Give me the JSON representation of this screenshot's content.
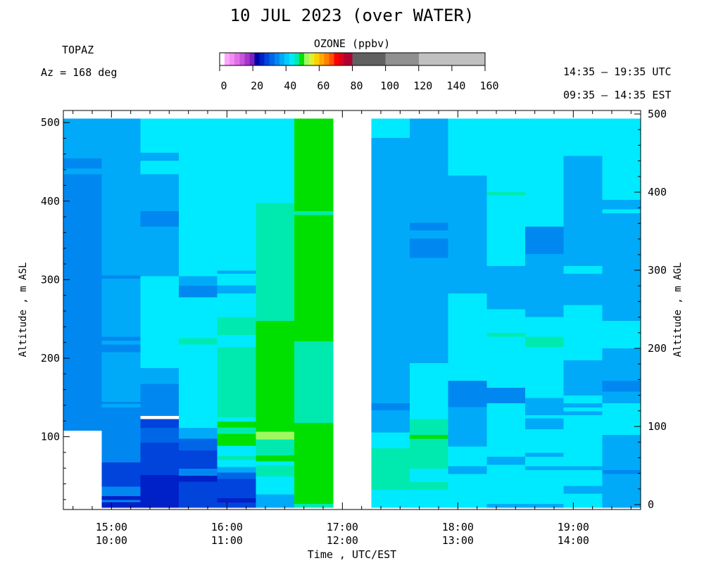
{
  "header": {
    "title": "10 JUL 2023 (over WATER)",
    "site": "TOPAZ",
    "azimuth": "Az = 168 deg",
    "time_utc": "14:35 – 19:35 UTC",
    "time_est": "09:35 – 14:35 EST"
  },
  "colorbar": {
    "title": "OZONE (ppbv)",
    "ticks": [
      "0",
      "20",
      "40",
      "60",
      "80",
      "100",
      "120",
      "140",
      "160"
    ],
    "colors": [
      "#ffffff",
      "#ffa6ff",
      "#f48cf4",
      "#e070e8",
      "#c854dc",
      "#a636cc",
      "#7a20bc",
      "#0000a8",
      "#0020c8",
      "#0044dc",
      "#0066e8",
      "#0088f0",
      "#00aaf8",
      "#00ccfc",
      "#00eaff",
      "#00eab0",
      "#00e000",
      "#a0f860",
      "#e0f030",
      "#ffd000",
      "#ffa800",
      "#ff8000",
      "#ff5000",
      "#ff0000",
      "#d80020",
      "#b00030",
      "#606060",
      "#909090",
      "#c0c0c0"
    ],
    "ranges": [
      [
        0,
        3
      ],
      [
        3,
        6
      ],
      [
        6,
        9
      ],
      [
        9,
        12
      ],
      [
        12,
        15
      ],
      [
        15,
        18
      ],
      [
        18,
        21
      ],
      [
        21,
        24
      ],
      [
        24,
        27
      ],
      [
        27,
        30
      ],
      [
        30,
        33
      ],
      [
        33,
        36
      ],
      [
        36,
        39
      ],
      [
        39,
        42
      ],
      [
        42,
        45
      ],
      [
        45,
        48
      ],
      [
        48,
        51
      ],
      [
        51,
        54
      ],
      [
        54,
        57
      ],
      [
        57,
        60
      ],
      [
        60,
        63
      ],
      [
        63,
        66
      ],
      [
        66,
        69
      ],
      [
        69,
        72
      ],
      [
        72,
        75
      ],
      [
        75,
        80
      ],
      [
        80,
        100
      ],
      [
        100,
        120
      ],
      [
        120,
        160
      ]
    ]
  },
  "chart_data": {
    "type": "heatmap",
    "variable": "Ozone (ppbv)",
    "xlabel": "Time , UTC/EST",
    "ylabel_left": "Altitude , m ASL",
    "ylabel_right": "Altitude , m AGL",
    "x_ticks_utc": [
      "15:00",
      "16:00",
      "17:00",
      "18:00",
      "19:00"
    ],
    "x_ticks_est": [
      "10:00",
      "11:00",
      "12:00",
      "13:00",
      "14:00"
    ],
    "y_ticks_left": [
      100,
      200,
      300,
      400,
      500
    ],
    "y_ticks_right": [
      0,
      100,
      200,
      300,
      400,
      500
    ],
    "color_legend": {
      "light-blue": "#00aaf8",
      "mid-blue": "#0088f0",
      "blue": "#0066e8",
      "dark-blue": "#0044dc",
      "navy": "#0020c8",
      "deep-navy": "#0000a8",
      "cyan": "#00eaff",
      "turquoise": "#00eab0",
      "green": "#00e000",
      "lime": "#a0f860"
    },
    "profiles": [
      {
        "start": "14:35",
        "end": "14:55",
        "layers": [
          [
            108,
            435,
            "mid-blue"
          ],
          [
            435,
            442,
            "light-blue"
          ],
          [
            442,
            455,
            "mid-blue"
          ],
          [
            455,
            505,
            "light-blue"
          ]
        ]
      },
      {
        "start": "14:55",
        "end": "15:15",
        "layers": [
          [
            10,
            17,
            "navy"
          ],
          [
            17,
            20,
            "mid-blue"
          ],
          [
            20,
            25,
            "navy"
          ],
          [
            25,
            37,
            "mid-blue"
          ],
          [
            37,
            68,
            "dark-blue"
          ],
          [
            68,
            138,
            "mid-blue"
          ],
          [
            138,
            142,
            "light-blue"
          ],
          [
            142,
            145,
            "mid-blue"
          ],
          [
            145,
            150,
            "light-blue"
          ],
          [
            150,
            208,
            "light-blue"
          ],
          [
            208,
            218,
            "mid-blue"
          ],
          [
            218,
            223,
            "light-blue"
          ],
          [
            223,
            228,
            "mid-blue"
          ],
          [
            228,
            302,
            "light-blue"
          ],
          [
            302,
            306,
            "mid-blue"
          ],
          [
            306,
            505,
            "light-blue"
          ]
        ]
      },
      {
        "start": "15:15",
        "end": "15:35",
        "layers": [
          [
            10,
            52,
            "navy"
          ],
          [
            52,
            93,
            "dark-blue"
          ],
          [
            93,
            112,
            "blue"
          ],
          [
            112,
            123,
            "dark-blue"
          ],
          [
            123,
            127,
            "white"
          ],
          [
            127,
            168,
            "mid-blue"
          ],
          [
            168,
            188,
            "light-blue"
          ],
          [
            188,
            305,
            "cyan"
          ],
          [
            305,
            368,
            "light-blue"
          ],
          [
            368,
            388,
            "mid-blue"
          ],
          [
            388,
            435,
            "light-blue"
          ],
          [
            435,
            452,
            "cyan"
          ],
          [
            452,
            462,
            "light-blue"
          ],
          [
            462,
            505,
            "cyan"
          ]
        ]
      },
      {
        "start": "15:35",
        "end": "15:55",
        "layers": [
          [
            10,
            43,
            "dark-blue"
          ],
          [
            43,
            51,
            "navy"
          ],
          [
            51,
            60,
            "mid-blue"
          ],
          [
            60,
            83,
            "dark-blue"
          ],
          [
            83,
            98,
            "blue"
          ],
          [
            98,
            112,
            "light-blue"
          ],
          [
            112,
            218,
            "cyan"
          ],
          [
            218,
            226,
            "turquoise"
          ],
          [
            226,
            278,
            "cyan"
          ],
          [
            278,
            293,
            "mid-blue"
          ],
          [
            293,
            305,
            "light-blue"
          ],
          [
            305,
            418,
            "cyan"
          ],
          [
            418,
            505,
            "cyan"
          ]
        ]
      },
      {
        "start": "15:55",
        "end": "16:15",
        "layers": [
          [
            10,
            17,
            "dark-blue"
          ],
          [
            17,
            22,
            "navy"
          ],
          [
            22,
            47,
            "dark-blue"
          ],
          [
            47,
            55,
            "blue"
          ],
          [
            55,
            62,
            "light-blue"
          ],
          [
            62,
            71,
            "cyan"
          ],
          [
            71,
            76,
            "turquoise"
          ],
          [
            76,
            89,
            "cyan"
          ],
          [
            89,
            104,
            "green"
          ],
          [
            104,
            112,
            "turquoise"
          ],
          [
            112,
            120,
            "green"
          ],
          [
            120,
            125,
            "cyan"
          ],
          [
            125,
            215,
            "turquoise"
          ],
          [
            215,
            230,
            "cyan"
          ],
          [
            230,
            253,
            "turquoise"
          ],
          [
            253,
            283,
            "cyan"
          ],
          [
            283,
            293,
            "light-blue"
          ],
          [
            293,
            308,
            "cyan"
          ],
          [
            308,
            312,
            "light-blue"
          ],
          [
            312,
            505,
            "cyan"
          ]
        ]
      },
      {
        "start": "16:15",
        "end": "16:35",
        "layers": [
          [
            10,
            27,
            "light-blue"
          ],
          [
            27,
            50,
            "cyan"
          ],
          [
            50,
            64,
            "turquoise"
          ],
          [
            64,
            69,
            "cyan"
          ],
          [
            69,
            77,
            "green"
          ],
          [
            77,
            97,
            "turquoise"
          ],
          [
            97,
            107,
            "lime"
          ],
          [
            107,
            248,
            "green"
          ],
          [
            248,
            398,
            "turquoise"
          ],
          [
            398,
            505,
            "cyan"
          ]
        ]
      },
      {
        "start": "16:35",
        "end": "16:55",
        "layers": [
          [
            10,
            15,
            "turquoise"
          ],
          [
            15,
            118,
            "green"
          ],
          [
            118,
            222,
            "turquoise"
          ],
          [
            222,
            383,
            "green"
          ],
          [
            383,
            388,
            "turquoise"
          ],
          [
            388,
            505,
            "green"
          ]
        ]
      },
      {
        "start": "17:15",
        "end": "17:35",
        "layers": [
          [
            10,
            33,
            "cyan"
          ],
          [
            33,
            86,
            "turquoise"
          ],
          [
            86,
            106,
            "cyan"
          ],
          [
            106,
            134,
            "light-blue"
          ],
          [
            134,
            143,
            "mid-blue"
          ],
          [
            143,
            481,
            "light-blue"
          ],
          [
            481,
            505,
            "cyan"
          ]
        ]
      },
      {
        "start": "17:35",
        "end": "17:55",
        "layers": [
          [
            10,
            33,
            "cyan"
          ],
          [
            33,
            43,
            "turquoise"
          ],
          [
            43,
            60,
            "cyan"
          ],
          [
            60,
            98,
            "turquoise"
          ],
          [
            98,
            103,
            "green"
          ],
          [
            103,
            123,
            "turquoise"
          ],
          [
            123,
            194,
            "cyan"
          ],
          [
            194,
            328,
            "light-blue"
          ],
          [
            328,
            353,
            "mid-blue"
          ],
          [
            353,
            363,
            "light-blue"
          ],
          [
            363,
            373,
            "mid-blue"
          ],
          [
            373,
            505,
            "light-blue"
          ]
        ]
      },
      {
        "start": "17:55",
        "end": "18:15",
        "layers": [
          [
            10,
            53,
            "cyan"
          ],
          [
            53,
            63,
            "light-blue"
          ],
          [
            63,
            88,
            "cyan"
          ],
          [
            88,
            138,
            "light-blue"
          ],
          [
            138,
            172,
            "mid-blue"
          ],
          [
            172,
            283,
            "cyan"
          ],
          [
            283,
            433,
            "light-blue"
          ],
          [
            433,
            505,
            "cyan"
          ]
        ]
      },
      {
        "start": "18:15",
        "end": "18:35",
        "layers": [
          [
            10,
            15,
            "light-blue"
          ],
          [
            15,
            65,
            "cyan"
          ],
          [
            65,
            75,
            "light-blue"
          ],
          [
            75,
            143,
            "cyan"
          ],
          [
            143,
            163,
            "mid-blue"
          ],
          [
            163,
            228,
            "cyan"
          ],
          [
            228,
            233,
            "turquoise"
          ],
          [
            233,
            263,
            "cyan"
          ],
          [
            263,
            318,
            "light-blue"
          ],
          [
            318,
            408,
            "cyan"
          ],
          [
            408,
            412,
            "turquoise"
          ],
          [
            412,
            505,
            "cyan"
          ]
        ]
      },
      {
        "start": "18:35",
        "end": "18:55",
        "layers": [
          [
            10,
            15,
            "light-blue"
          ],
          [
            15,
            58,
            "cyan"
          ],
          [
            58,
            63,
            "light-blue"
          ],
          [
            63,
            75,
            "cyan"
          ],
          [
            75,
            80,
            "light-blue"
          ],
          [
            80,
            110,
            "cyan"
          ],
          [
            110,
            124,
            "light-blue"
          ],
          [
            124,
            128,
            "cyan"
          ],
          [
            128,
            150,
            "light-blue"
          ],
          [
            150,
            215,
            "cyan"
          ],
          [
            215,
            228,
            "turquoise"
          ],
          [
            228,
            253,
            "cyan"
          ],
          [
            253,
            333,
            "light-blue"
          ],
          [
            333,
            368,
            "mid-blue"
          ],
          [
            368,
            505,
            "cyan"
          ]
        ]
      },
      {
        "start": "18:55",
        "end": "19:15",
        "layers": [
          [
            10,
            28,
            "cyan"
          ],
          [
            28,
            38,
            "light-blue"
          ],
          [
            38,
            58,
            "cyan"
          ],
          [
            58,
            63,
            "light-blue"
          ],
          [
            63,
            128,
            "cyan"
          ],
          [
            128,
            133,
            "light-blue"
          ],
          [
            133,
            138,
            "cyan"
          ],
          [
            138,
            143,
            "light-blue"
          ],
          [
            143,
            153,
            "cyan"
          ],
          [
            153,
            198,
            "light-blue"
          ],
          [
            198,
            268,
            "cyan"
          ],
          [
            268,
            308,
            "light-blue"
          ],
          [
            308,
            318,
            "cyan"
          ],
          [
            318,
            323,
            "light-blue"
          ],
          [
            323,
            458,
            "light-blue"
          ],
          [
            458,
            505,
            "cyan"
          ]
        ]
      },
      {
        "start": "19:15",
        "end": "19:35",
        "layers": [
          [
            10,
            53,
            "light-blue"
          ],
          [
            53,
            58,
            "mid-blue"
          ],
          [
            58,
            103,
            "light-blue"
          ],
          [
            103,
            143,
            "cyan"
          ],
          [
            143,
            158,
            "light-blue"
          ],
          [
            158,
            172,
            "mid-blue"
          ],
          [
            172,
            213,
            "light-blue"
          ],
          [
            213,
            248,
            "cyan"
          ],
          [
            248,
            385,
            "light-blue"
          ],
          [
            385,
            390,
            "cyan"
          ],
          [
            390,
            402,
            "light-blue"
          ],
          [
            402,
            435,
            "cyan"
          ],
          [
            435,
            505,
            "cyan"
          ]
        ]
      }
    ]
  }
}
